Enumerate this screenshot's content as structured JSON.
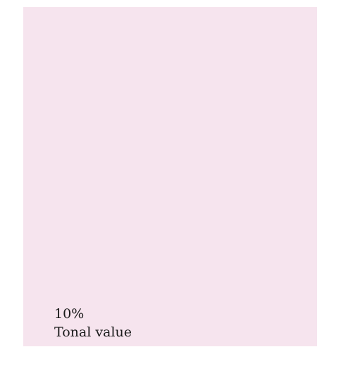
{
  "swatch": {
    "value": "10%",
    "label": "Tonal value",
    "color": "#f6e4ee"
  }
}
